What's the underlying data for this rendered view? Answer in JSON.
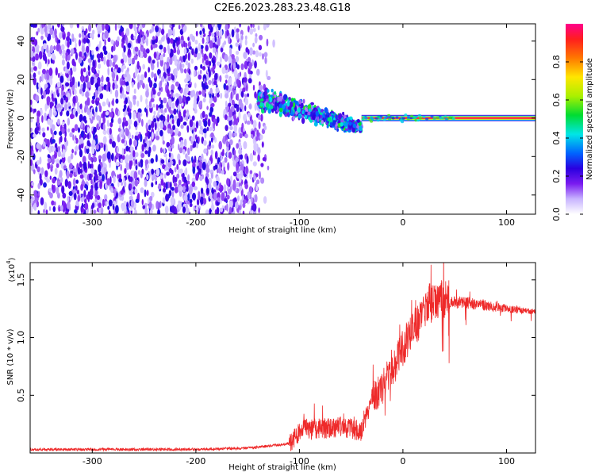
{
  "title": "C2E6.2023.283.23.48.G18",
  "chart_data": [
    {
      "type": "heatmap",
      "xlabel": "Height of straight line (km)",
      "ylabel": "Frequency (Hz)",
      "xlim": [
        -360,
        128
      ],
      "ylim": [
        -50,
        49
      ],
      "xticks": [
        -300,
        -200,
        -100,
        0,
        100
      ],
      "yticks": [
        -40,
        -20,
        0,
        20,
        40
      ],
      "colorbar": {
        "label": "Normalized spectral amplitude",
        "range": [
          0,
          1
        ],
        "ticks": [
          0.0,
          0.2,
          0.4,
          0.6,
          0.8
        ],
        "colormap": [
          "#ffffff",
          "#c8b4ff",
          "#7a1cf0",
          "#2a00e0",
          "#0064ff",
          "#00e6e6",
          "#00dc32",
          "#aaf000",
          "#ffe600",
          "#ff7800",
          "#ff1e1e",
          "#ff008c"
        ]
      },
      "segments": [
        {
          "x_range": [
            -360,
            -140
          ],
          "description_values": {
            "freq_spread": [
              -50,
              49
            ],
            "amplitude_range": [
              0.05,
              0.3
            ]
          }
        },
        {
          "x_range": [
            -140,
            -40
          ],
          "description_values": {
            "center_freq": [
              10,
              -5
            ],
            "amplitude_range": [
              0.1,
              0.55
            ]
          }
        },
        {
          "x_range": [
            -40,
            128
          ],
          "description_values": {
            "center_freq": 0,
            "amplitude_range": [
              0.6,
              1.0
            ]
          }
        }
      ],
      "grid": false
    },
    {
      "type": "line",
      "xlabel": "Height of straight line (km)",
      "ylabel": "SNR (10 * v/v)",
      "yscale_note": "(x10",
      "yscale_exp": "4",
      "yscale_close": ")",
      "xlim": [
        -360,
        128
      ],
      "ylim": [
        0,
        1.65
      ],
      "xticks": [
        -300,
        -200,
        -100,
        0,
        100
      ],
      "yticks": [
        0.5,
        1.0,
        1.5
      ],
      "ytick_labels": [
        "0.5",
        "1.0",
        "1.5"
      ],
      "color": "#ee2a2a",
      "envelope": [
        {
          "x": -360,
          "y": 0.03
        },
        {
          "x": -200,
          "y": 0.03
        },
        {
          "x": -150,
          "y": 0.04
        },
        {
          "x": -110,
          "y": 0.08
        },
        {
          "x": -95,
          "y": 0.2
        },
        {
          "x": -80,
          "y": 0.2
        },
        {
          "x": -60,
          "y": 0.22
        },
        {
          "x": -40,
          "y": 0.18
        },
        {
          "x": -30,
          "y": 0.45
        },
        {
          "x": -20,
          "y": 0.55
        },
        {
          "x": -10,
          "y": 0.7
        },
        {
          "x": 0,
          "y": 0.9
        },
        {
          "x": 10,
          "y": 1.05
        },
        {
          "x": 20,
          "y": 1.2
        },
        {
          "x": 30,
          "y": 1.33
        },
        {
          "x": 40,
          "y": 1.3
        },
        {
          "x": 60,
          "y": 1.3
        },
        {
          "x": 80,
          "y": 1.27
        },
        {
          "x": 100,
          "y": 1.25
        },
        {
          "x": 128,
          "y": 1.22
        }
      ]
    }
  ]
}
